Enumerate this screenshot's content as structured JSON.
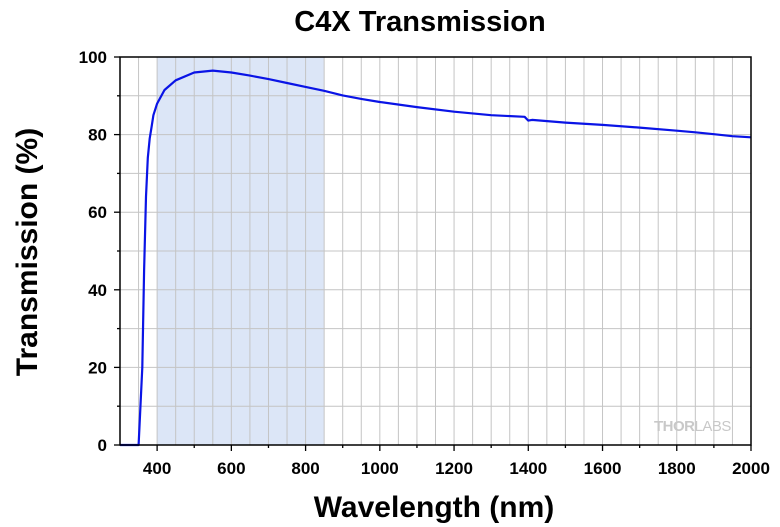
{
  "chart_data": {
    "type": "line",
    "title": "C4X Transmission",
    "xlabel": "Wavelength (nm)",
    "ylabel": "Transmission (%)",
    "xlim": [
      300,
      2000
    ],
    "ylim": [
      0,
      100
    ],
    "x_ticks": [
      400,
      600,
      800,
      1000,
      1200,
      1400,
      1600,
      1800,
      2000
    ],
    "y_ticks": [
      0,
      20,
      40,
      60,
      80,
      100
    ],
    "grid": true,
    "highlight_band": {
      "x_start": 400,
      "x_end": 850,
      "color": "#dce6f7"
    },
    "series": [
      {
        "color": "#0a14e6",
        "x": [
          300,
          350,
          360,
          365,
          370,
          375,
          380,
          385,
          390,
          400,
          420,
          450,
          500,
          550,
          600,
          650,
          700,
          750,
          800,
          850,
          900,
          950,
          1000,
          1100,
          1200,
          1300,
          1390,
          1400,
          1410,
          1500,
          1600,
          1700,
          1800,
          1850,
          1900,
          1950,
          2000
        ],
        "y": [
          0,
          0,
          20,
          45,
          64,
          74,
          79,
          82,
          85,
          88,
          91.5,
          94,
          96,
          96.5,
          96,
          95.2,
          94.3,
          93.3,
          92.3,
          91.3,
          90.1,
          89.2,
          88.4,
          87.1,
          85.9,
          85,
          84.6,
          83.6,
          83.8,
          83.1,
          82.5,
          81.8,
          81,
          80.6,
          80.1,
          79.6,
          79.3
        ]
      }
    ]
  },
  "watermark": {
    "thor": "THOR",
    "labs": "LABS"
  }
}
